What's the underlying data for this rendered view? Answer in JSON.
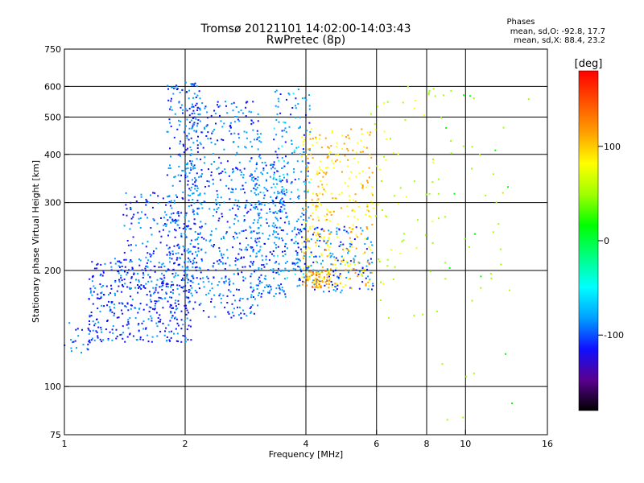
{
  "chart_data": {
    "type": "scatter",
    "title": "Tromsø 20121101 14:02:00-14:03:43",
    "subtitle": "RwPretec (8p)",
    "xlabel": "Frequency [MHz]",
    "ylabel": "Stationary phase Virtual Height [km]",
    "x_scale": "log",
    "y_scale": "log",
    "xlim": [
      1,
      16
    ],
    "ylim": [
      75,
      750
    ],
    "x_ticks": [
      1,
      2,
      4,
      6,
      8,
      10,
      16
    ],
    "x_tick_labels": [
      "1",
      "2",
      "4",
      "6",
      "8",
      "10",
      "16"
    ],
    "y_ticks": [
      75,
      100,
      200,
      300,
      400,
      500,
      600,
      750
    ],
    "y_tick_labels": [
      "75",
      "100",
      "200",
      "300",
      "400",
      "500",
      "600",
      "750"
    ],
    "grid": true,
    "stats": {
      "heading": "Phases",
      "o_mode": "mean, sd,O: -92.8, 17.7",
      "x_mode": "mean, sd,X:  88.4, 23.2"
    },
    "colorbar": {
      "unit_label": "[deg]",
      "range": [
        -180,
        180
      ],
      "ticks": [
        100,
        0,
        -100
      ],
      "tick_labels": [
        "100",
        "0",
        "-100"
      ],
      "colors": [
        "#000000",
        "#5a0090",
        "#1010ff",
        "#00a0ff",
        "#00ffff",
        "#00ff80",
        "#00ff00",
        "#a0ff00",
        "#ffff00",
        "#ffa000",
        "#ff5000",
        "#ff0000"
      ]
    },
    "clusters": [
      {
        "x": [
          1.0,
          1.18
        ],
        "y": [
          120,
          150
        ],
        "phase": -100,
        "n": 25
      },
      {
        "x": [
          1.15,
          2.1
        ],
        "y": [
          130,
          215
        ],
        "phase": -105,
        "n": 420
      },
      {
        "x": [
          1.4,
          2.0
        ],
        "y": [
          180,
          320
        ],
        "phase": -100,
        "n": 150
      },
      {
        "x": [
          1.8,
          2.2
        ],
        "y": [
          200,
          620
        ],
        "phase": -95,
        "n": 240
      },
      {
        "x": [
          2.0,
          3.1
        ],
        "y": [
          150,
          550
        ],
        "phase": -95,
        "n": 520
      },
      {
        "x": [
          2.9,
          3.6
        ],
        "y": [
          170,
          400
        ],
        "phase": -90,
        "n": 230
      },
      {
        "x": [
          3.3,
          4.1
        ],
        "y": [
          190,
          600
        ],
        "phase": -85,
        "n": 200
      },
      {
        "x": [
          3.7,
          5.9
        ],
        "y": [
          175,
          260
        ],
        "phase": -95,
        "n": 190
      },
      {
        "x": [
          3.9,
          5.9
        ],
        "y": [
          180,
          470
        ],
        "phase": 95,
        "n": 330
      },
      {
        "x": [
          4.0,
          4.6
        ],
        "y": [
          180,
          200
        ],
        "phase": 110,
        "n": 60
      },
      {
        "x": [
          5.8,
          9.0
        ],
        "y": [
          150,
          620
        ],
        "phase": 60,
        "n": 70
      },
      {
        "x": [
          8.0,
          14.5
        ],
        "y": [
          80,
          640
        ],
        "phase": 40,
        "n": 45
      }
    ]
  }
}
